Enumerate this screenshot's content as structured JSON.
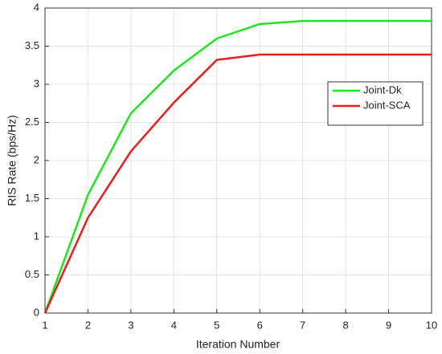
{
  "chart_data": {
    "type": "line",
    "x": [
      1,
      2,
      3,
      4,
      5,
      6,
      7,
      8,
      9,
      10
    ],
    "series": [
      {
        "name": "Joint-Dk",
        "color": "#1ee61e",
        "values": [
          0,
          1.55,
          2.62,
          3.18,
          3.6,
          3.79,
          3.83,
          3.83,
          3.83,
          3.83
        ]
      },
      {
        "name": "Joint-SCA",
        "color": "#e61e1e",
        "values": [
          0,
          1.25,
          2.12,
          2.76,
          3.32,
          3.39,
          3.39,
          3.39,
          3.39,
          3.39
        ]
      }
    ],
    "xlabel": "Iteration Number",
    "ylabel": "RIS Rate (bps/Hz)",
    "xlim": [
      1,
      10
    ],
    "xticks": [
      1,
      2,
      3,
      4,
      5,
      6,
      7,
      8,
      9,
      10
    ],
    "ylim": [
      0,
      4
    ],
    "yticks": [
      0,
      0.5,
      1,
      1.5,
      2,
      2.5,
      3,
      3.5,
      4
    ],
    "grid": true,
    "legend": "upper right"
  }
}
